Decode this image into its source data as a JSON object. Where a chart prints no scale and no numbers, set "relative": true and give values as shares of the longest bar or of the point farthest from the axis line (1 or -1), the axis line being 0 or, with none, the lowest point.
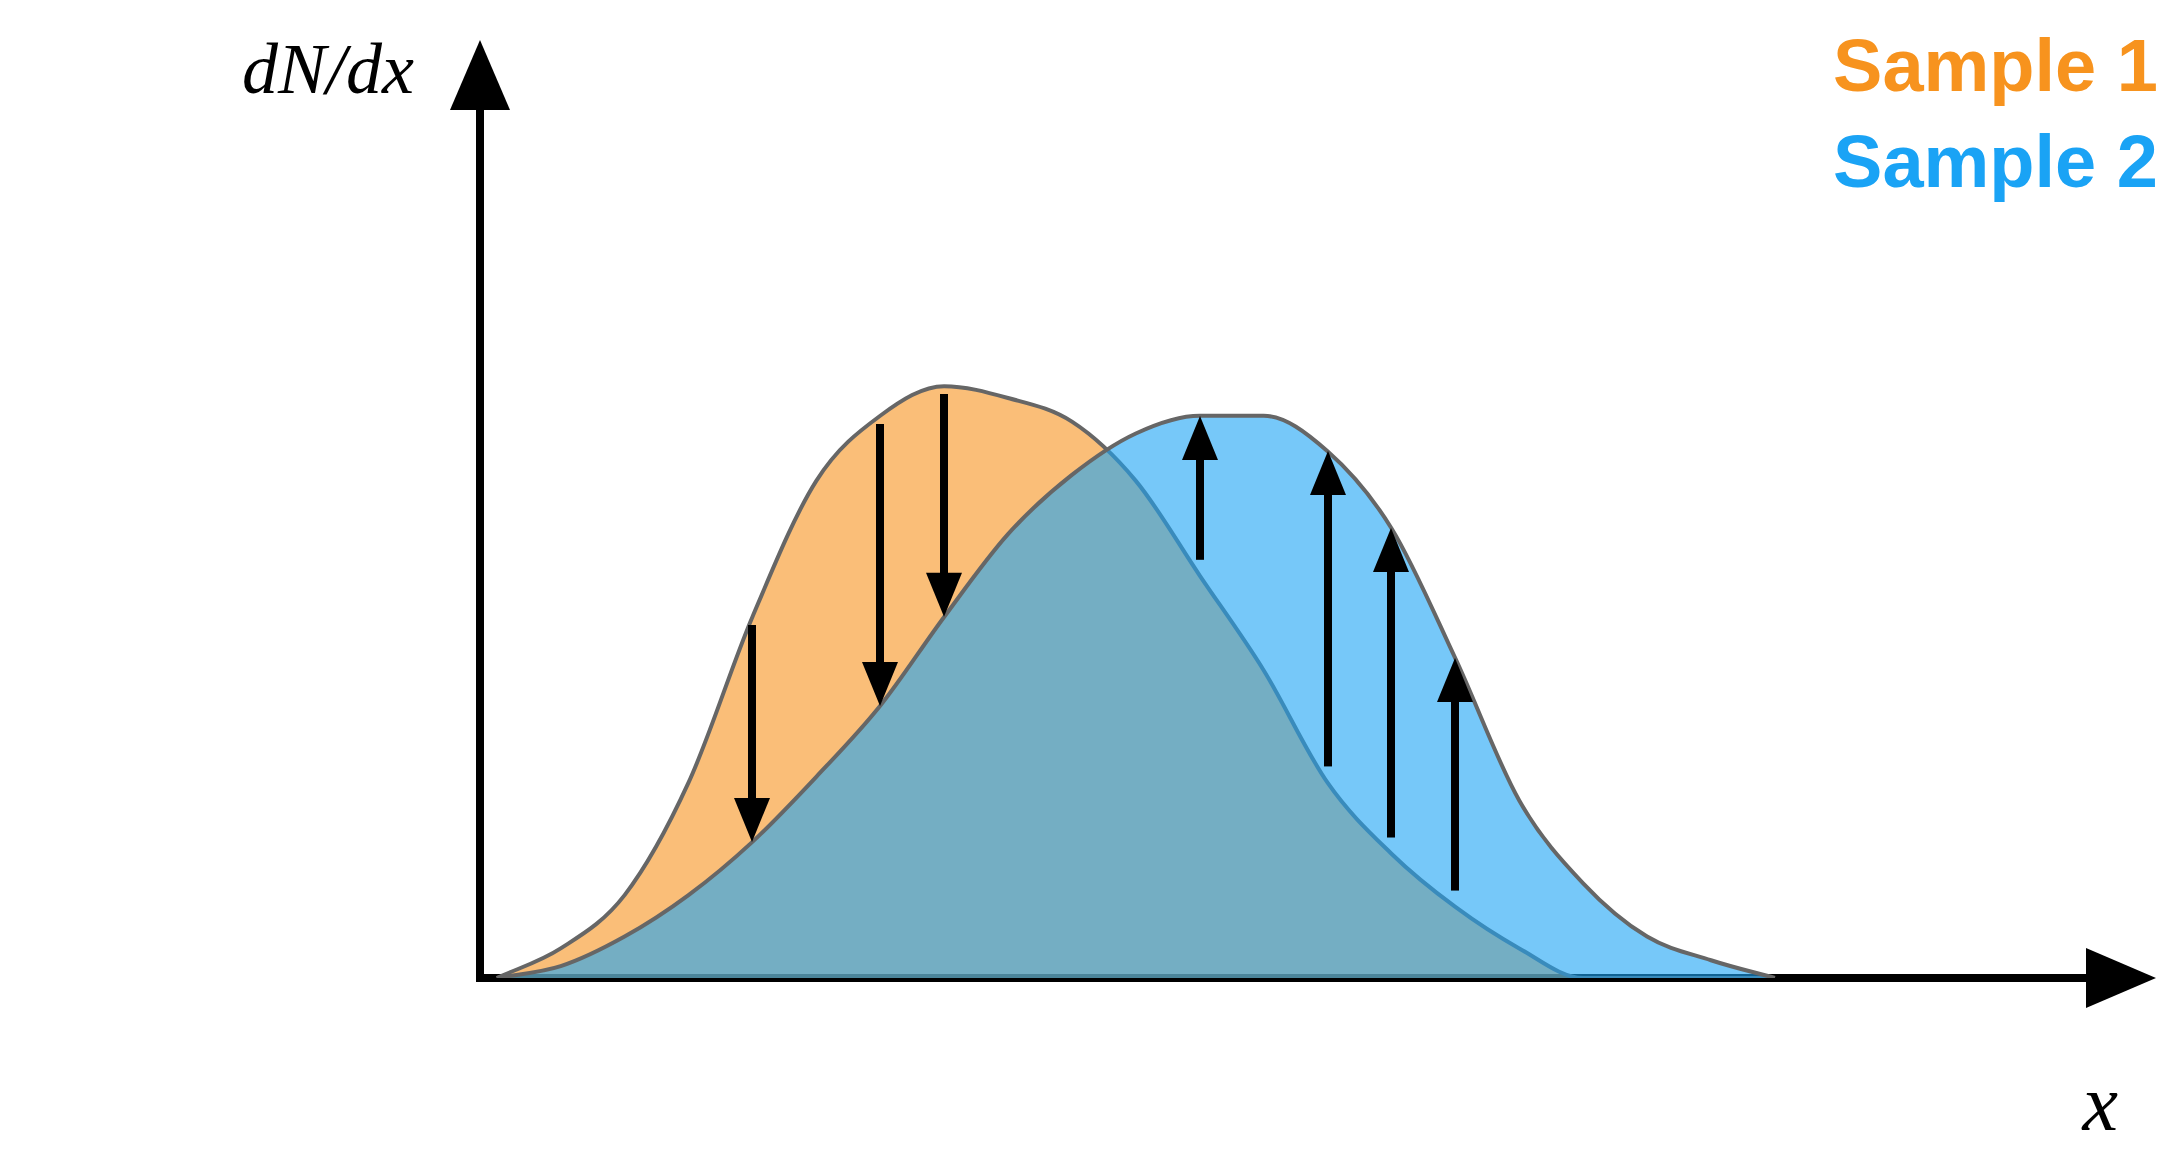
{
  "chart_data": {
    "type": "area",
    "relative": true,
    "xlabel": "x",
    "ylabel": "dN/dx",
    "categories": [
      null,
      null,
      null,
      null,
      null,
      null,
      null,
      null,
      null,
      null,
      null,
      null,
      null,
      null,
      null,
      null,
      null,
      null,
      null,
      null,
      null
    ],
    "series": [
      {
        "name": "Sample 1",
        "color": "#f7931e",
        "values": [
          0,
          0.05,
          0.14,
          0.33,
          0.61,
          0.84,
          0.95,
          1,
          0.98,
          0.94,
          0.84,
          0.68,
          0.52,
          0.33,
          0.21,
          0.12,
          0.05,
          0,
          0,
          0,
          0
        ]
      },
      {
        "name": "Sample 2",
        "color": "#1aa3f5",
        "values": [
          0,
          0.02,
          0.07,
          0.14,
          0.23,
          0.34,
          0.46,
          0.61,
          0.75,
          0.85,
          0.92,
          0.95,
          0.95,
          0.89,
          0.76,
          0.54,
          0.3,
          0.16,
          0.07,
          0.03,
          0
        ]
      }
    ],
    "legend": "top right",
    "grid": false,
    "tick_labels": false
  }
}
